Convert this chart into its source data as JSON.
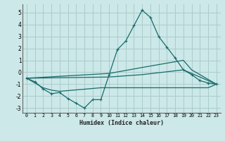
{
  "background_color": "#cce8e8",
  "grid_color": "#aacccc",
  "line_color": "#1a6b6b",
  "xlabel": "Humidex (Indice chaleur)",
  "xlim": [
    -0.5,
    23.5
  ],
  "ylim": [
    -3.4,
    5.7
  ],
  "yticks": [
    -3,
    -2,
    -1,
    0,
    1,
    2,
    3,
    4,
    5
  ],
  "xticks": [
    0,
    1,
    2,
    3,
    4,
    5,
    6,
    7,
    8,
    9,
    10,
    11,
    12,
    13,
    14,
    15,
    16,
    17,
    18,
    19,
    20,
    21,
    22,
    23
  ],
  "series": [
    {
      "x": [
        0,
        1,
        2,
        3,
        4,
        5,
        6,
        7,
        8,
        9,
        10,
        11,
        12,
        13,
        14,
        15,
        16,
        17,
        18,
        19,
        20,
        21,
        22,
        23
      ],
      "y": [
        -0.5,
        -0.8,
        -1.4,
        -1.8,
        -1.7,
        -2.2,
        -2.6,
        -3.0,
        -2.3,
        -2.3,
        -0.2,
        1.9,
        2.6,
        3.9,
        5.2,
        4.6,
        3.0,
        2.1,
        1.2,
        0.2,
        -0.2,
        -0.7,
        -0.9,
        -1.0
      ],
      "marker": true
    },
    {
      "x": [
        0,
        10,
        14,
        19,
        20,
        23
      ],
      "y": [
        -0.5,
        -0.1,
        0.4,
        1.0,
        0.2,
        -1.0
      ],
      "marker": false
    },
    {
      "x": [
        0,
        10,
        14,
        19,
        23
      ],
      "y": [
        -0.5,
        -0.4,
        -0.2,
        0.2,
        -1.0
      ],
      "marker": false
    },
    {
      "x": [
        0,
        2,
        3,
        4,
        9,
        10,
        11,
        12,
        13,
        14,
        15,
        16,
        17,
        18,
        19,
        20,
        21,
        22,
        23
      ],
      "y": [
        -0.5,
        -1.3,
        -1.5,
        -1.6,
        -1.3,
        -1.3,
        -1.3,
        -1.3,
        -1.3,
        -1.3,
        -1.3,
        -1.3,
        -1.3,
        -1.3,
        -1.3,
        -1.3,
        -1.3,
        -1.3,
        -1.0
      ],
      "marker": false
    }
  ]
}
